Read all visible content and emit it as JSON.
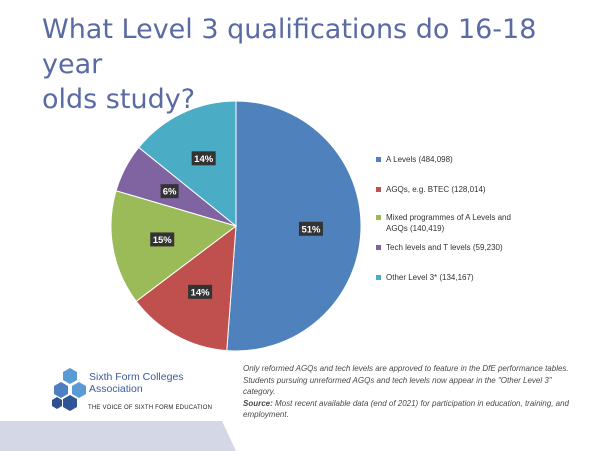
{
  "title": "What Level 3 qualifications do 16-18 year\n olds study?",
  "chart_data": {
    "type": "pie",
    "title": "What Level 3 qualifications do 16-18 year olds study?",
    "legend_position": "right",
    "series": [
      {
        "label": "A Levels (484,098)",
        "value": 484098,
        "percent_label": "51%",
        "color": "#4f81bd"
      },
      {
        "label": "AGQs, e.g. BTEC (128,014)",
        "value": 128014,
        "percent_label": "14%",
        "color": "#c0504d"
      },
      {
        "label": "Mixed programmes of A Levels and AGQs (140,419)",
        "value": 140419,
        "percent_label": "15%",
        "color": "#9bbb59"
      },
      {
        "label": "Tech levels and T levels (59,230)",
        "value": 59230,
        "percent_label": "6%",
        "color": "#8064a2"
      },
      {
        "label": "Other Level 3* (134,167)",
        "value": 134167,
        "percent_label": "14%",
        "color": "#4bacc6"
      }
    ]
  },
  "footnote": {
    "text": "Only reformed AGQs and tech levels are approved to feature in the DfE performance tables. Students pursuing unreformed AGQs and tech levels now appear in the \"Other Level 3\" category.",
    "source_label": "Source:",
    "source_text": " Most recent available data (end of 2021) for participation in education, training, and employment."
  },
  "logo": {
    "line1": "Sixth Form Colleges",
    "line2": "Association",
    "tagline": "THE VOICE OF SIXTH FORM EDUCATION"
  }
}
